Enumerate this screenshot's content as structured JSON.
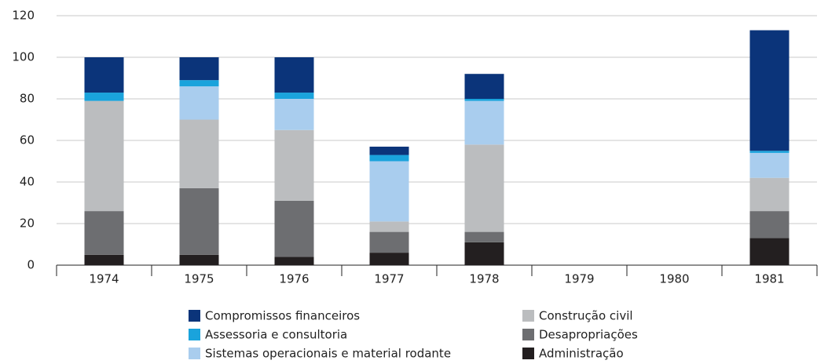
{
  "chart_data": {
    "type": "stacked_bar",
    "categories": [
      "1974",
      "1975",
      "1976",
      "1977",
      "1978",
      "1979",
      "1980",
      "1981"
    ],
    "series": [
      {
        "name": "Administração",
        "color": "#231f20",
        "values": [
          5,
          5,
          4,
          6,
          11,
          null,
          null,
          13
        ]
      },
      {
        "name": "Desapropriações",
        "color": "#6d6e71",
        "values": [
          21,
          32,
          27,
          10,
          5,
          null,
          null,
          13
        ]
      },
      {
        "name": "Construção civil",
        "color": "#bbbdbf",
        "values": [
          53,
          33,
          34,
          5,
          42,
          null,
          null,
          16
        ]
      },
      {
        "name": "Sistemas operacionais e material rodante",
        "color": "#a9cdee",
        "values": [
          0,
          16,
          15,
          29,
          21,
          null,
          null,
          12
        ]
      },
      {
        "name": "Assessoria e consultoria",
        "color": "#1aa3dc",
        "values": [
          4,
          3,
          3,
          3,
          1,
          null,
          null,
          1
        ]
      },
      {
        "name": "Compromissos financeiros",
        "color": "#0b347a",
        "values": [
          17,
          11,
          17,
          4,
          12,
          null,
          null,
          58
        ]
      }
    ],
    "ylim": [
      0,
      120
    ],
    "yticks": [
      0,
      20,
      40,
      60,
      80,
      100,
      120
    ],
    "grid": true
  }
}
